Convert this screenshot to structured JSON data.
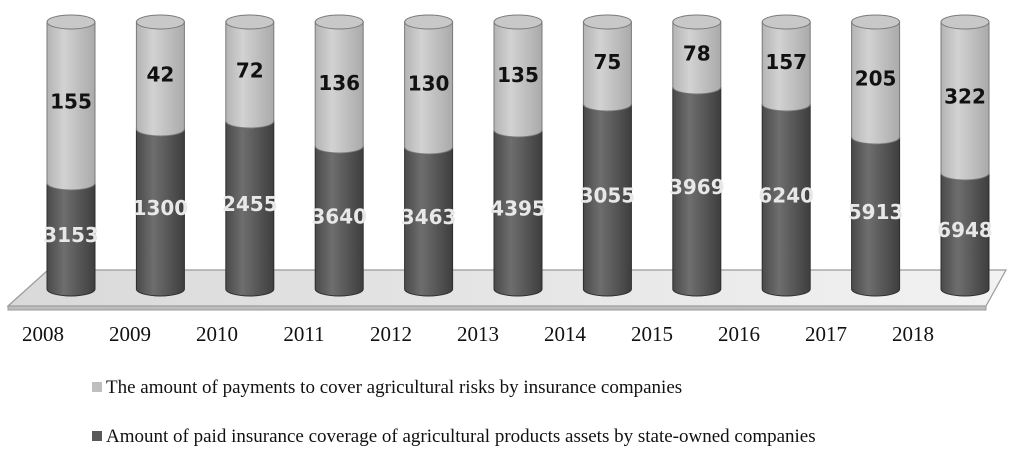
{
  "chart_data": {
    "type": "bar",
    "stacked": true,
    "style": "3d-cylinder",
    "categories": [
      "2008",
      "2009",
      "2010",
      "2011",
      "2012",
      "2013",
      "2014",
      "2015",
      "2016",
      "2017",
      "2018"
    ],
    "series": [
      {
        "name": "Amount of paid insurance coverage of agricultural products assets by state-owned companies",
        "color": "#595959",
        "values": [
          3153,
          1300,
          2455,
          3640,
          3463,
          4395,
          3055,
          3969,
          6240,
          5913,
          6948
        ]
      },
      {
        "name": "The amount of payments to cover agricultural risks by insurance companies",
        "color": "#bfbfbf",
        "values": [
          155,
          42,
          72,
          136,
          130,
          135,
          75,
          78,
          157,
          205,
          322
        ]
      }
    ],
    "legend_position": "bottom",
    "grid": false
  },
  "legend": {
    "items": [
      {
        "label": "The amount of payments to cover agricultural risks by insurance companies",
        "color": "#bfbfbf"
      },
      {
        "label": "Amount of paid insurance coverage of agricultural products assets by state-owned companies",
        "color": "#595959"
      }
    ]
  }
}
